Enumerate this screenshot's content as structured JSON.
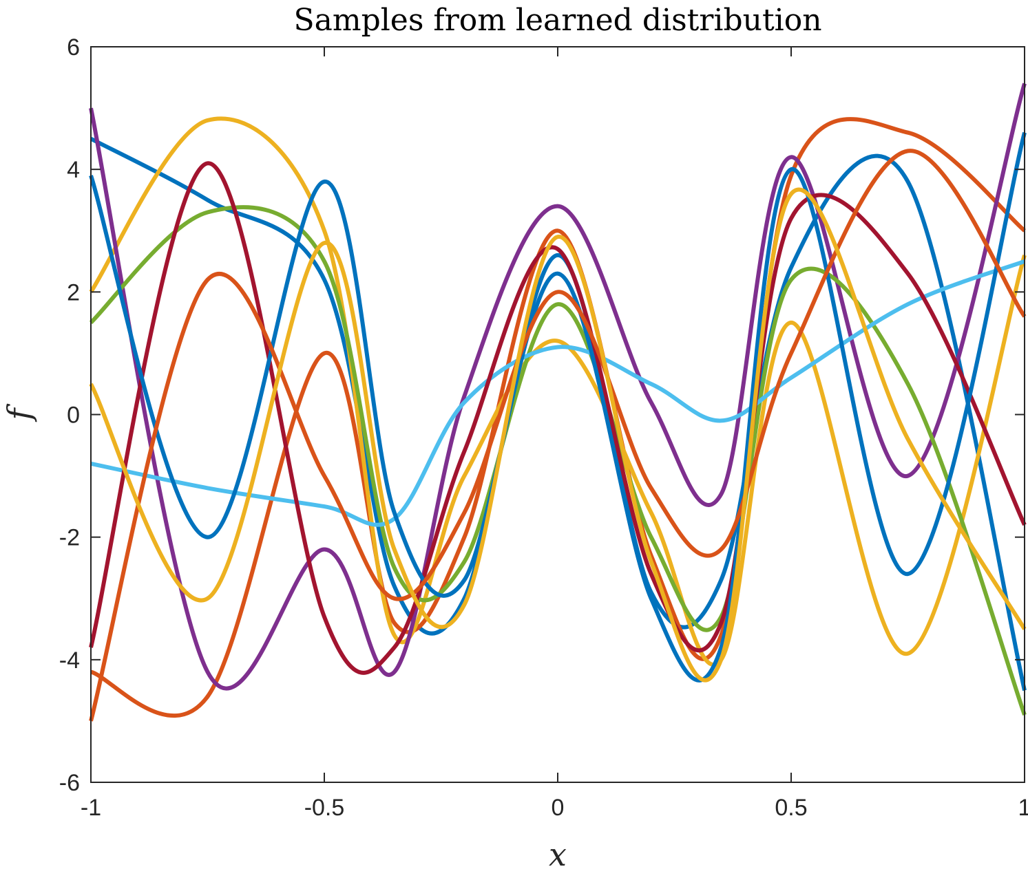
{
  "chart_data": {
    "type": "line",
    "title": "Samples from learned distribution",
    "xlabel": "x",
    "ylabel": "f",
    "xlim": [
      -1,
      1
    ],
    "ylim": [
      -6,
      6
    ],
    "xticks": [
      -1,
      -0.5,
      0,
      0.5,
      1
    ],
    "xtick_labels": [
      "-1",
      "-0.5",
      "0",
      "0.5",
      "1"
    ],
    "yticks": [
      -6,
      -4,
      -2,
      0,
      2,
      4,
      6
    ],
    "ytick_labels": [
      "-6",
      "-4",
      "-2",
      "0",
      "2",
      "4",
      "6"
    ],
    "grid": false,
    "legend": "none",
    "colors": [
      "#0072BD",
      "#D95319",
      "#EDB120",
      "#7E2F8E",
      "#77AC30",
      "#4DBEEE",
      "#A2142F"
    ],
    "series": [
      {
        "x": [
          -1,
          -0.75,
          -0.5,
          -0.35,
          -0.2,
          0,
          0.2,
          0.35,
          0.5,
          0.75,
          1
        ],
        "y": [
          4.5,
          3.5,
          2.2,
          -2.8,
          -3.0,
          2.6,
          -2.9,
          -2.7,
          2.4,
          3.8,
          -4.5
        ]
      },
      {
        "x": [
          -1,
          -0.75,
          -0.5,
          -0.35,
          -0.2,
          0,
          0.2,
          0.35,
          0.5,
          0.75,
          1
        ],
        "y": [
          -4.2,
          -4.6,
          1.0,
          -3.4,
          -2.0,
          3.0,
          -2.3,
          -3.6,
          3.9,
          4.6,
          3.0
        ]
      },
      {
        "x": [
          -1,
          -0.75,
          -0.5,
          -0.35,
          -0.2,
          0,
          0.2,
          0.35,
          0.5,
          0.75,
          1
        ],
        "y": [
          2.0,
          4.8,
          3.0,
          -3.6,
          -1.0,
          1.2,
          -1.6,
          -4.0,
          1.5,
          -3.9,
          2.6
        ]
      },
      {
        "x": [
          -1,
          -0.75,
          -0.5,
          -0.35,
          -0.2,
          0,
          0.2,
          0.35,
          0.5,
          0.75,
          1
        ],
        "y": [
          5.0,
          -4.2,
          -2.2,
          -4.2,
          0.3,
          3.4,
          0.2,
          -1.3,
          4.2,
          -1.0,
          5.4
        ]
      },
      {
        "x": [
          -1,
          -0.75,
          -0.5,
          -0.35,
          -0.2,
          0,
          0.2,
          0.35,
          0.5,
          0.75,
          1
        ],
        "y": [
          1.5,
          3.3,
          2.5,
          -2.5,
          -2.4,
          1.8,
          -2.0,
          -3.3,
          2.2,
          0.5,
          -4.9
        ]
      },
      {
        "x": [
          -1,
          -0.75,
          -0.5,
          -0.35,
          -0.2,
          0,
          0.2,
          0.35,
          0.5,
          0.75,
          1
        ],
        "y": [
          -0.8,
          -1.2,
          -1.5,
          -1.7,
          0.2,
          1.1,
          0.5,
          -0.1,
          0.6,
          1.8,
          2.5
        ]
      },
      {
        "x": [
          -1,
          -0.75,
          -0.5,
          -0.35,
          -0.2,
          0,
          0.2,
          0.35,
          0.5,
          0.75,
          1
        ],
        "y": [
          -3.8,
          4.1,
          -3.3,
          -3.8,
          -0.6,
          2.7,
          -2.6,
          -3.4,
          3.2,
          2.3,
          -1.8
        ]
      },
      {
        "x": [
          -1,
          -0.75,
          -0.5,
          -0.35,
          -0.2,
          0,
          0.2,
          0.35,
          0.5,
          0.75,
          1
        ],
        "y": [
          3.9,
          -2.0,
          3.8,
          -1.6,
          -2.7,
          2.3,
          -3.0,
          -3.8,
          4.0,
          -2.6,
          4.6
        ]
      },
      {
        "x": [
          -1,
          -0.75,
          -0.5,
          -0.35,
          -0.2,
          0,
          0.2,
          0.35,
          0.5,
          0.75,
          1
        ],
        "y": [
          -5.0,
          2.2,
          -1.0,
          -3.0,
          -1.6,
          2.0,
          -1.2,
          -2.2,
          1.0,
          4.3,
          1.6
        ]
      },
      {
        "x": [
          -1,
          -0.75,
          -0.5,
          -0.35,
          -0.2,
          0,
          0.2,
          0.35,
          0.5,
          0.75,
          1
        ],
        "y": [
          0.5,
          -3.0,
          2.8,
          -2.2,
          -3.1,
          2.9,
          -2.4,
          -4.0,
          3.6,
          -0.4,
          -3.5
        ]
      }
    ]
  }
}
